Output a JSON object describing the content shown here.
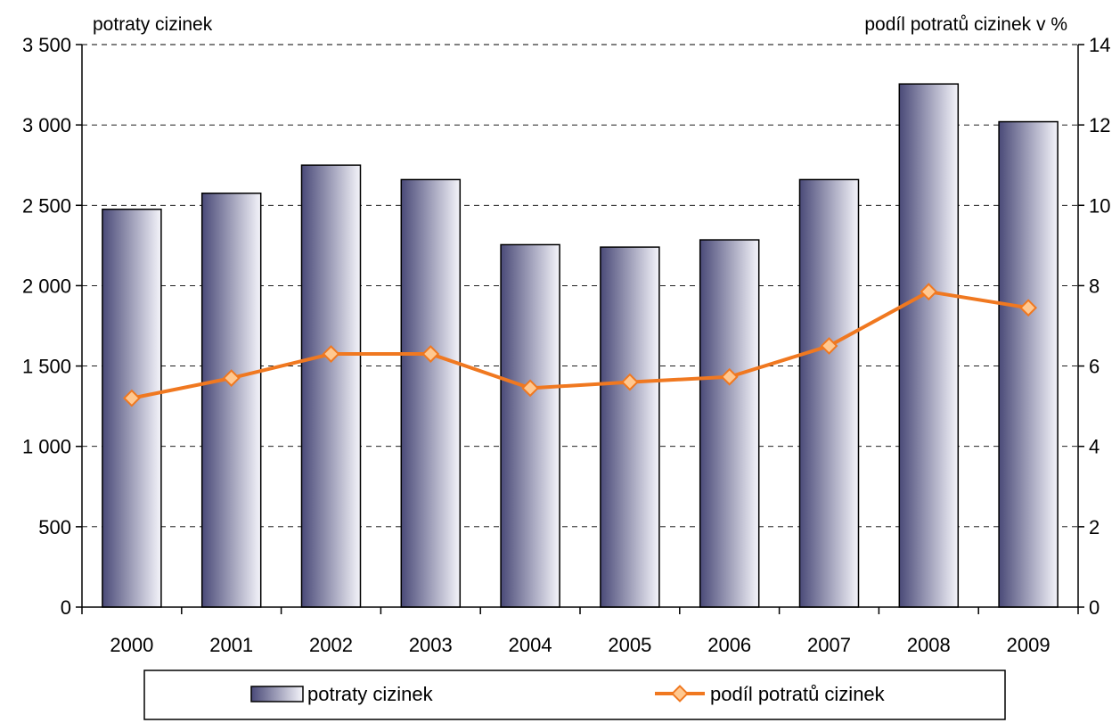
{
  "chart_data": {
    "type": "bar",
    "categories": [
      "2000",
      "2001",
      "2002",
      "2003",
      "2004",
      "2005",
      "2006",
      "2007",
      "2008",
      "2009"
    ],
    "series": [
      {
        "name": "potraty cizinek",
        "type": "bar",
        "axis": "left",
        "values": [
          2475,
          2575,
          2750,
          2660,
          2255,
          2240,
          2285,
          2660,
          3255,
          3020
        ]
      },
      {
        "name": "podíl potratů cizinek",
        "type": "line",
        "axis": "right",
        "color": "#f07820",
        "values": [
          5.2,
          5.7,
          6.3,
          6.3,
          5.45,
          5.6,
          5.73,
          6.5,
          7.85,
          7.45
        ]
      }
    ],
    "left_axis": {
      "title": "potraty cizinek",
      "ylim": [
        0,
        3500
      ],
      "ticks": [
        0,
        500,
        1000,
        1500,
        2000,
        2500,
        3000,
        3500
      ],
      "tick_labels": [
        "0",
        "500",
        "1 000",
        "1 500",
        "2 000",
        "2 500",
        "3 000",
        "3 500"
      ]
    },
    "right_axis": {
      "title": "podíl potratů cizinek v %",
      "ylim": [
        0,
        14
      ],
      "ticks": [
        0,
        2,
        4,
        6,
        8,
        10,
        12,
        14
      ],
      "tick_labels": [
        "0",
        "2",
        "4",
        "6",
        "8",
        "10",
        "12",
        "14"
      ]
    },
    "grid": true,
    "legend_position": "bottom",
    "colors": {
      "bar_dark": "#4a4a78",
      "bar_light": "#f4f4fa",
      "line": "#f07820",
      "marker_fill": "#ffc890"
    }
  }
}
